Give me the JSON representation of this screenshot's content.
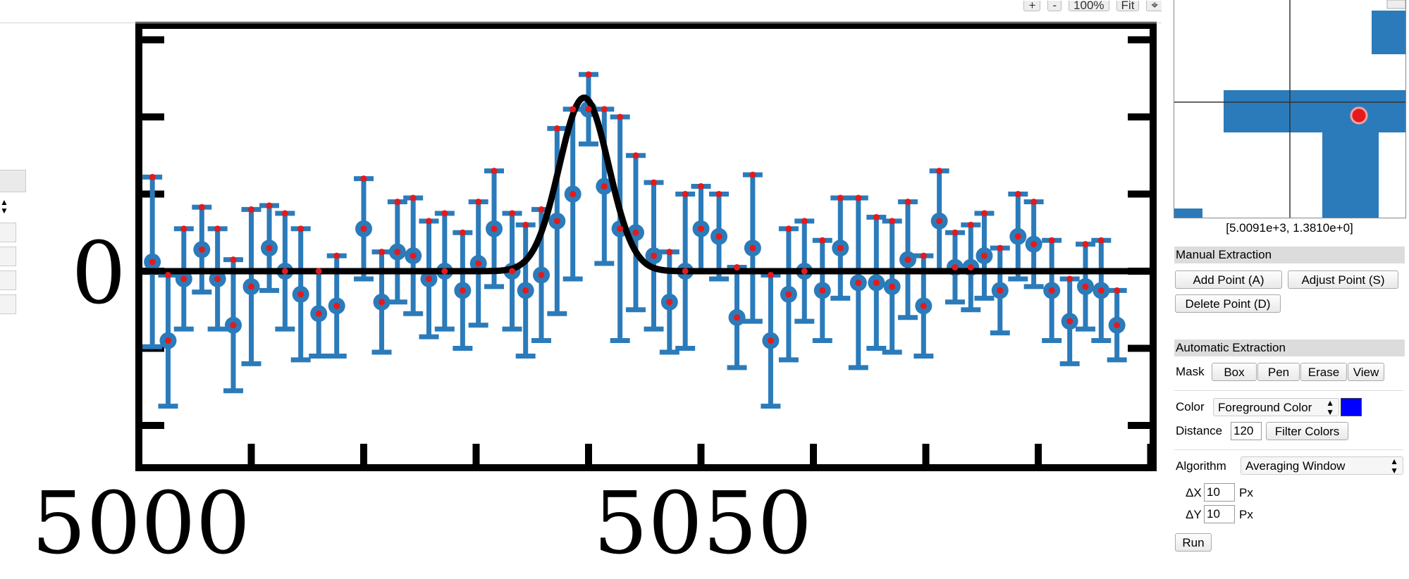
{
  "toolbar": {
    "zoom_in": "+",
    "zoom_out": "-",
    "zoom_level": "100%",
    "fit": "Fit",
    "crosshair_icon": "crosshair-icon"
  },
  "magnifier": {
    "coords": "[5.0091e+3, 1.3810e+0]"
  },
  "manual": {
    "title": "Manual Extraction",
    "add_point": "Add Point (A)",
    "adjust_point": "Adjust Point (S)",
    "delete_point": "Delete Point (D)"
  },
  "automatic": {
    "title": "Automatic Extraction",
    "mask_label": "Mask",
    "mask_box": "Box",
    "mask_pen": "Pen",
    "mask_erase": "Erase",
    "mask_view": "View",
    "color_label": "Color",
    "color_mode": "Foreground Color",
    "color_value": "#0000ff",
    "distance_label": "Distance",
    "distance_value": "120",
    "filter_colors": "Filter Colors",
    "algorithm_label": "Algorithm",
    "algorithm_value": "Averaging Window",
    "dx_label": "ΔX",
    "dx_value": "10",
    "dx_unit": "Px",
    "dy_label": "ΔY",
    "dy_value": "10",
    "dy_unit": "Px",
    "run": "Run"
  },
  "chart_data": {
    "type": "scatter",
    "x_tick_labels": [
      "5000",
      "5050"
    ],
    "y_tick_labels": [
      "0"
    ],
    "xlim": [
      5000,
      5045.5
    ],
    "ylim": [
      -3.3,
      4.1
    ],
    "x_minor_step": 5,
    "y_minor_step": 1,
    "fit_curve": {
      "amplitude": 2.25,
      "center": 5019.8,
      "sigma": 1.1
    },
    "points": [
      {
        "x": 5000.6,
        "y": 0.12,
        "err": 1.1
      },
      {
        "x": 5001.3,
        "y": -0.9,
        "err": 0.85
      },
      {
        "x": 5002.0,
        "y": -0.1,
        "err": 0.65
      },
      {
        "x": 5002.8,
        "y": 0.28,
        "err": 0.55
      },
      {
        "x": 5003.5,
        "y": -0.1,
        "err": 0.65
      },
      {
        "x": 5004.2,
        "y": -0.7,
        "err": 0.85
      },
      {
        "x": 5005.0,
        "y": -0.2,
        "err": 1.0
      },
      {
        "x": 5005.8,
        "y": 0.3,
        "err": 0.55
      },
      {
        "x": 5006.5,
        "y": 0.0,
        "err": 0.75
      },
      {
        "x": 5007.2,
        "y": -0.3,
        "err": 0.85
      },
      {
        "x": 5008.0,
        "y": -0.55,
        "err": 0.55
      },
      {
        "x": 5008.8,
        "y": -0.45,
        "err": 0.65
      },
      {
        "x": 5010.0,
        "y": 0.55,
        "err": 0.65
      },
      {
        "x": 5010.8,
        "y": -0.4,
        "err": 0.65
      },
      {
        "x": 5011.5,
        "y": 0.25,
        "err": 0.65
      },
      {
        "x": 5012.2,
        "y": 0.2,
        "err": 0.75
      },
      {
        "x": 5012.9,
        "y": -0.1,
        "err": 0.75
      },
      {
        "x": 5013.6,
        "y": 0.0,
        "err": 0.75
      },
      {
        "x": 5014.4,
        "y": -0.25,
        "err": 0.75
      },
      {
        "x": 5015.1,
        "y": 0.1,
        "err": 0.8
      },
      {
        "x": 5015.8,
        "y": 0.55,
        "err": 0.75
      },
      {
        "x": 5016.6,
        "y": 0.0,
        "err": 0.75
      },
      {
        "x": 5017.2,
        "y": -0.25,
        "err": 0.85
      },
      {
        "x": 5017.9,
        "y": -0.05,
        "err": 0.85
      },
      {
        "x": 5018.6,
        "y": 0.65,
        "err": 1.2
      },
      {
        "x": 5019.3,
        "y": 1.0,
        "err": 1.1
      },
      {
        "x": 5020.0,
        "y": 2.1,
        "err": 0.45
      },
      {
        "x": 5020.7,
        "y": 1.1,
        "err": 1.0
      },
      {
        "x": 5021.4,
        "y": 0.55,
        "err": 1.45
      },
      {
        "x": 5022.1,
        "y": 0.5,
        "err": 1.0
      },
      {
        "x": 5022.9,
        "y": 0.2,
        "err": 0.95
      },
      {
        "x": 5023.6,
        "y": -0.4,
        "err": 0.65
      },
      {
        "x": 5024.3,
        "y": 0.0,
        "err": 1.0
      },
      {
        "x": 5025.0,
        "y": 0.55,
        "err": 0.55
      },
      {
        "x": 5025.8,
        "y": 0.45,
        "err": 0.55
      },
      {
        "x": 5026.6,
        "y": -0.6,
        "err": 0.65
      },
      {
        "x": 5027.3,
        "y": 0.3,
        "err": 0.95
      },
      {
        "x": 5028.1,
        "y": -0.9,
        "err": 0.85
      },
      {
        "x": 5028.9,
        "y": -0.3,
        "err": 0.85
      },
      {
        "x": 5029.6,
        "y": 0.0,
        "err": 0.65
      },
      {
        "x": 5030.4,
        "y": -0.25,
        "err": 0.65
      },
      {
        "x": 5031.2,
        "y": 0.3,
        "err": 0.65
      },
      {
        "x": 5032.0,
        "y": -0.15,
        "err": 1.1
      },
      {
        "x": 5032.8,
        "y": -0.15,
        "err": 0.85
      },
      {
        "x": 5033.5,
        "y": -0.2,
        "err": 0.85
      },
      {
        "x": 5034.2,
        "y": 0.15,
        "err": 0.75
      },
      {
        "x": 5034.9,
        "y": -0.45,
        "err": 0.65
      },
      {
        "x": 5035.6,
        "y": 0.65,
        "err": 0.65
      },
      {
        "x": 5036.3,
        "y": 0.05,
        "err": 0.45
      },
      {
        "x": 5037.0,
        "y": 0.05,
        "err": 0.55
      },
      {
        "x": 5037.6,
        "y": 0.2,
        "err": 0.55
      },
      {
        "x": 5038.3,
        "y": -0.25,
        "err": 0.55
      },
      {
        "x": 5039.1,
        "y": 0.45,
        "err": 0.55
      },
      {
        "x": 5039.8,
        "y": 0.35,
        "err": 0.55
      },
      {
        "x": 5040.6,
        "y": -0.25,
        "err": 0.65
      },
      {
        "x": 5041.4,
        "y": -0.65,
        "err": 0.55
      },
      {
        "x": 5042.1,
        "y": -0.2,
        "err": 0.55
      },
      {
        "x": 5042.8,
        "y": -0.25,
        "err": 0.65
      },
      {
        "x": 5043.5,
        "y": -0.7,
        "err": 0.45
      }
    ]
  }
}
